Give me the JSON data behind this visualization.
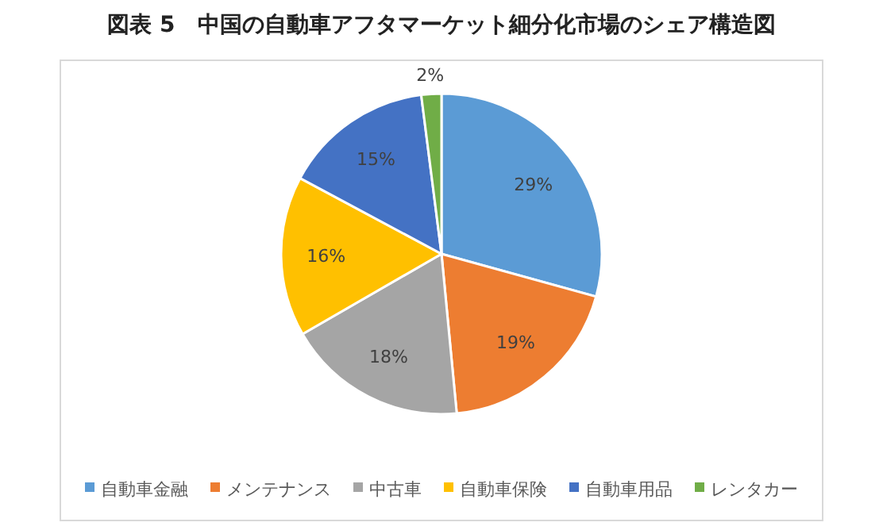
{
  "chart_data": {
    "type": "pie",
    "title": "図表 5　中国の自動車アフタマーケット細分化市場のシェア構造図",
    "categories": [
      "自動車金融",
      "メンテナンス",
      "中古車",
      "自動車保険",
      "自動車用品",
      "レンタカー"
    ],
    "values": [
      29,
      19,
      18,
      16,
      15,
      2
    ],
    "colors": [
      "#5b9bd5",
      "#ed7d31",
      "#a5a5a5",
      "#ffc000",
      "#4472c4",
      "#70ad47"
    ],
    "value_labels": [
      "29%",
      "19%",
      "18%",
      "16%",
      "15%",
      "2%"
    ],
    "legend": "bottom"
  }
}
